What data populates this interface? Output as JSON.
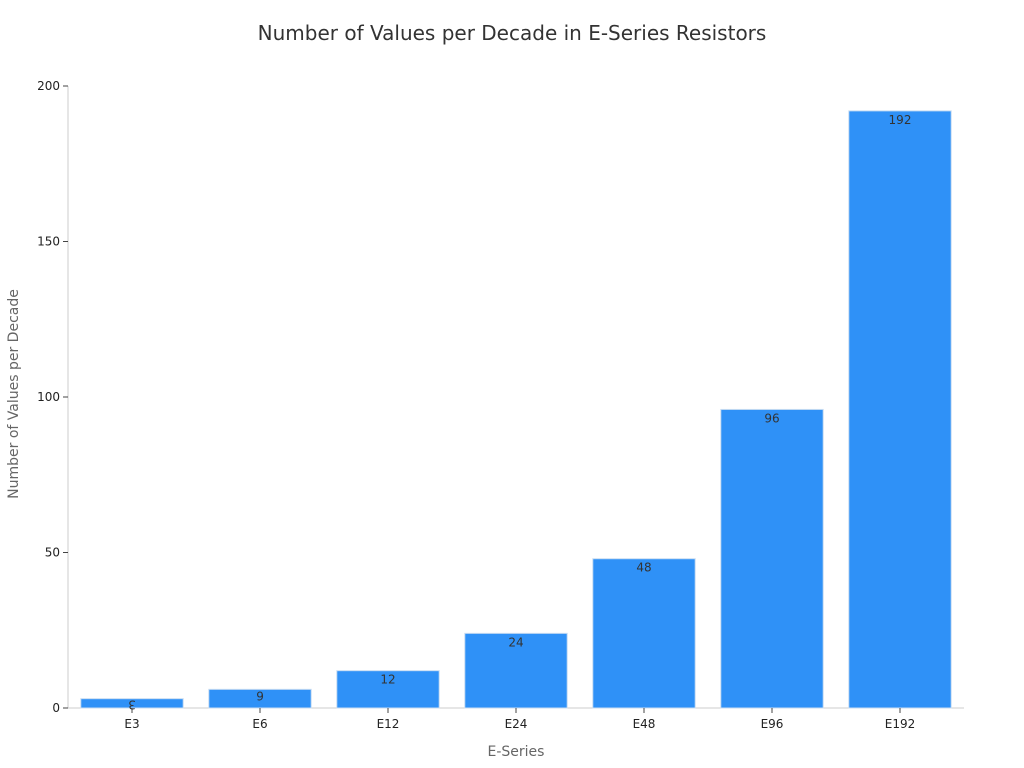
{
  "chart_data": {
    "type": "bar",
    "title": "Number of Values per Decade in E-Series Resistors",
    "xlabel": "E-Series",
    "ylabel": "Number of Values per Decade",
    "categories": [
      "E3",
      "E6",
      "E12",
      "E24",
      "E48",
      "E96",
      "E192"
    ],
    "values": [
      3,
      6,
      12,
      24,
      48,
      96,
      192
    ],
    "data_labels": [
      "3",
      "6",
      "12",
      "24",
      "48",
      "96",
      "192"
    ],
    "ylim": [
      0,
      200
    ],
    "yticks": [
      0,
      50,
      100,
      150,
      200
    ],
    "grid": false,
    "legend": "none",
    "colors": {
      "bar": "#2f91f7",
      "text": "#333333",
      "axis": "#cccccc"
    }
  }
}
